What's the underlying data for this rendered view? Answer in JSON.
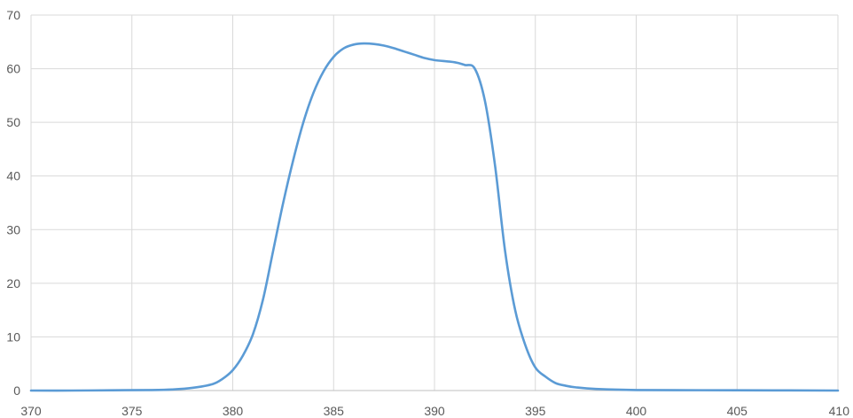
{
  "chart_data": {
    "type": "line",
    "title": "",
    "xlabel": "",
    "ylabel": "",
    "xlim": [
      370,
      410
    ],
    "ylim": [
      0,
      70
    ],
    "x_ticks": [
      "370",
      "375",
      "380",
      "385",
      "390",
      "395",
      "400",
      "405",
      "410"
    ],
    "y_ticks": [
      "0",
      "10",
      "20",
      "30",
      "40",
      "50",
      "60",
      "70"
    ],
    "grid": true,
    "legend": "none",
    "colors": {
      "series": "#5b9bd5",
      "grid": "#d9d9d9",
      "axis": "#bfbfbf",
      "text": "#595959"
    },
    "series": [
      {
        "x": [
          370,
          372,
          374,
          376,
          377,
          378,
          379,
          379.5,
          380,
          380.5,
          381,
          381.5,
          382,
          382.5,
          383,
          383.5,
          384,
          384.5,
          385,
          385.5,
          386,
          386.5,
          387,
          387.5,
          388,
          388.5,
          389,
          389.5,
          390,
          391,
          391.5,
          392,
          392.5,
          393,
          393.5,
          394,
          394.5,
          395,
          395.5,
          396,
          396.5,
          397,
          398,
          400,
          405,
          410
        ],
        "y": [
          0,
          0,
          0.05,
          0.1,
          0.2,
          0.5,
          1.2,
          2.2,
          3.8,
          6.5,
          10.5,
          17,
          26,
          35,
          43,
          50,
          55.5,
          59.5,
          62.2,
          63.8,
          64.5,
          64.7,
          64.6,
          64.3,
          63.8,
          63.2,
          62.6,
          62,
          61.6,
          61.2,
          60.7,
          60,
          54,
          42,
          26,
          15,
          8.5,
          4.3,
          2.6,
          1.4,
          0.9,
          0.6,
          0.3,
          0.1,
          0.05,
          0
        ]
      }
    ]
  }
}
